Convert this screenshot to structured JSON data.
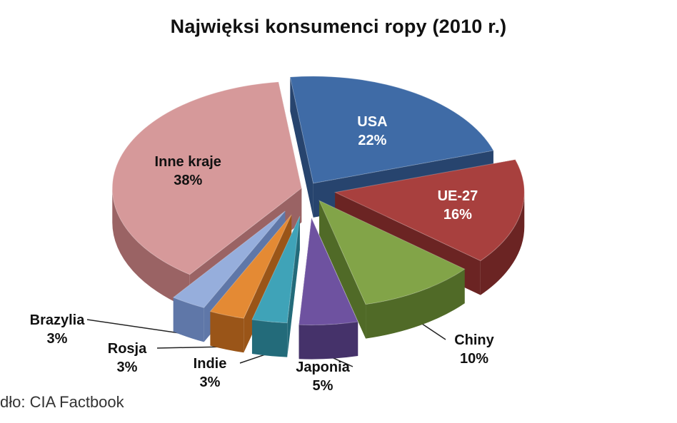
{
  "chart_data": {
    "type": "pie",
    "title": "Najwięksi konsumenci ropy (2010 r.)",
    "slices": [
      {
        "name": "USA",
        "value": 22,
        "label": "22%",
        "color": "#3F6BA6",
        "dark": "#27446E"
      },
      {
        "name": "UE-27",
        "value": 16,
        "label": "16%",
        "color": "#A8403E",
        "dark": "#6B2423"
      },
      {
        "name": "Chiny",
        "value": 10,
        "label": "10%",
        "color": "#82A448",
        "dark": "#506A27"
      },
      {
        "name": "Japonia",
        "value": 5,
        "label": "5%",
        "color": "#6E52A0",
        "dark": "#45326A"
      },
      {
        "name": "Indie",
        "value": 3,
        "label": "3%",
        "color": "#3FA3B8",
        "dark": "#236B7A"
      },
      {
        "name": "Rosja",
        "value": 3,
        "label": "3%",
        "color": "#E48A34",
        "dark": "#9A5518"
      },
      {
        "name": "Brazylia",
        "value": 3,
        "label": "3%",
        "color": "#96AEDC",
        "dark": "#5F77A8"
      },
      {
        "name": "Inne kraje",
        "value": 38,
        "label": "38%",
        "color": "#D6999A",
        "dark": "#9A6364"
      }
    ],
    "labels_inside": [
      "USA",
      "UE-27",
      "Inne kraje"
    ],
    "style": "exploded 3D pie"
  },
  "source_note": "dło: CIA Factbook"
}
